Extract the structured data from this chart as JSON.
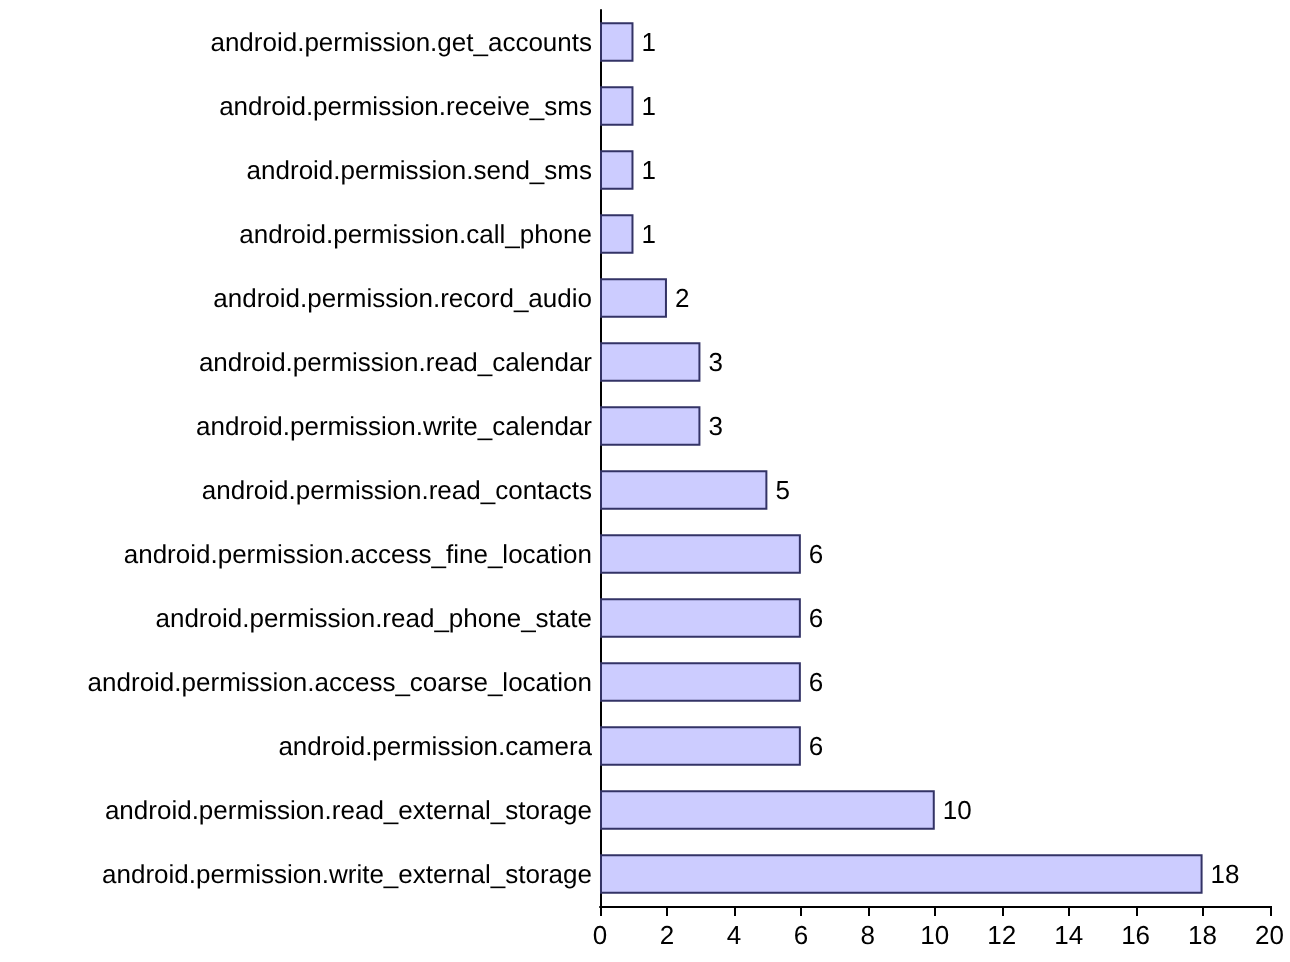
{
  "chart_data": {
    "type": "bar",
    "orientation": "horizontal",
    "categories": [
      "android.permission.get_accounts",
      "android.permission.receive_sms",
      "android.permission.send_sms",
      "android.permission.call_phone",
      "android.permission.record_audio",
      "android.permission.read_calendar",
      "android.permission.write_calendar",
      "android.permission.read_contacts",
      "android.permission.access_fine_location",
      "android.permission.read_phone_state",
      "android.permission.access_coarse_location",
      "android.permission.camera",
      "android.permission.read_external_storage",
      "android.permission.write_external_storage"
    ],
    "values": [
      1,
      1,
      1,
      1,
      2,
      3,
      3,
      5,
      6,
      6,
      6,
      6,
      10,
      18
    ],
    "color": "#ccccff",
    "xlim": [
      0,
      20
    ],
    "xticks": [
      0,
      2,
      4,
      6,
      8,
      10,
      12,
      14,
      16,
      18,
      20
    ],
    "data_labels": true
  }
}
